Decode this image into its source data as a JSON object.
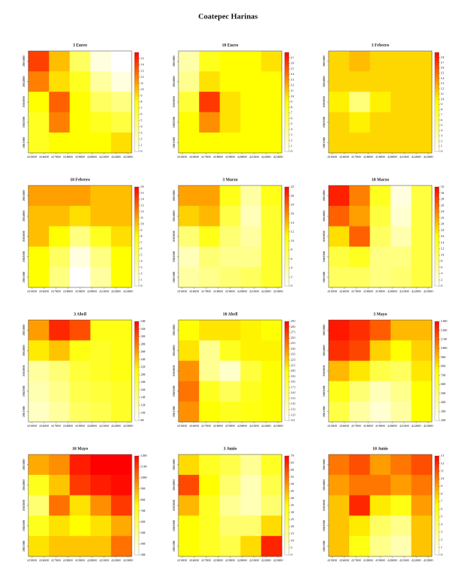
{
  "title": "Coatepec Harinas",
  "chart_data": [
    {
      "type": "heatmap",
      "title": "3 Enero",
      "xlim": [
        414700,
        423300
      ],
      "ylim": [
        2080500,
        2085500
      ],
      "xticks": [
        415000,
        416000,
        417000,
        418000,
        419000,
        420000,
        421000,
        422000,
        423000
      ],
      "yticks": [
        2081000,
        2082000,
        2083000,
        2084000,
        2085000
      ],
      "colors": [
        "#ffffff",
        "#ffff00",
        "#ff0000"
      ],
      "zlim": [
        0,
        16
      ],
      "zticks": [
        0,
        1,
        2,
        3,
        4,
        5,
        6,
        7,
        8,
        9,
        10,
        11,
        12,
        13,
        14,
        15
      ],
      "values": [
        [
          14,
          10,
          5,
          1,
          0
        ],
        [
          12,
          9,
          7,
          3,
          1
        ],
        [
          8,
          13,
          8,
          5,
          4
        ],
        [
          7,
          12,
          8,
          7,
          6
        ],
        [
          7,
          8,
          8,
          8,
          9
        ]
      ]
    },
    {
      "type": "heatmap",
      "title": "18 Enero",
      "xlim": [
        414700,
        423300
      ],
      "ylim": [
        2080500,
        2085500
      ],
      "xticks": [
        415000,
        416000,
        417000,
        418000,
        419000,
        420000,
        421000,
        422000,
        423000
      ],
      "yticks": [
        2081000,
        2082000,
        2083000,
        2084000,
        2085000
      ],
      "colors": [
        "#ffffff",
        "#ffff00",
        "#ff0000"
      ],
      "zlim": [
        0,
        18
      ],
      "zticks": [
        0,
        1,
        2,
        3,
        4,
        5,
        6,
        7,
        8,
        9,
        10,
        11,
        12,
        13,
        14,
        15,
        16,
        17
      ],
      "values": [
        [
          3,
          8,
          9,
          9,
          10
        ],
        [
          4,
          10,
          9,
          9,
          9
        ],
        [
          7,
          16,
          10,
          9,
          9
        ],
        [
          9,
          13,
          10,
          9,
          9
        ],
        [
          9,
          9,
          9,
          9,
          9
        ]
      ]
    },
    {
      "type": "heatmap",
      "title": "3 Febrero",
      "xlim": [
        414700,
        423300
      ],
      "ylim": [
        2080500,
        2085500
      ],
      "xticks": [
        415000,
        416000,
        417000,
        418000,
        419000,
        420000,
        421000,
        422000,
        423000
      ],
      "yticks": [
        2081000,
        2082000,
        2083000,
        2084000,
        2085000
      ],
      "colors": [
        "#ffffff",
        "#ffff00",
        "#ff0000"
      ],
      "zlim": [
        0,
        19
      ],
      "zticks": [
        0,
        1,
        2,
        3,
        4,
        5,
        6,
        7,
        8,
        9,
        10,
        11,
        12,
        13,
        14,
        15,
        16,
        17,
        18
      ],
      "values": [
        [
          11,
          12,
          11,
          11,
          11
        ],
        [
          11,
          11,
          11,
          11,
          11
        ],
        [
          10,
          5,
          10,
          11,
          11
        ],
        [
          11,
          10,
          11,
          11,
          11
        ],
        [
          11,
          11,
          11,
          11,
          11
        ]
      ]
    },
    {
      "type": "heatmap",
      "title": "18 Febrero",
      "xlim": [
        414700,
        423300
      ],
      "ylim": [
        2080500,
        2085500
      ],
      "xticks": [
        415000,
        416000,
        417000,
        418000,
        419000,
        420000,
        421000,
        422000,
        423000
      ],
      "yticks": [
        2081000,
        2082000,
        2083000,
        2084000,
        2085000
      ],
      "colors": [
        "#ffffff",
        "#ffff00",
        "#ff0000"
      ],
      "zlim": [
        0,
        16
      ],
      "zticks": [
        0,
        1,
        2,
        3,
        4,
        5,
        6,
        7,
        8,
        9,
        10,
        11,
        12,
        13,
        14,
        15,
        16
      ],
      "values": [
        [
          11,
          11,
          11,
          10,
          10
        ],
        [
          10,
          10,
          9,
          10,
          10
        ],
        [
          10,
          8,
          4,
          7,
          9
        ],
        [
          8,
          5,
          1,
          4,
          8
        ],
        [
          8,
          4,
          0,
          3,
          8
        ]
      ]
    },
    {
      "type": "heatmap",
      "title": "3 Marzo",
      "xlim": [
        414700,
        423300
      ],
      "ylim": [
        2080500,
        2085500
      ],
      "xticks": [
        415000,
        416000,
        417000,
        418000,
        419000,
        420000,
        421000,
        422000,
        423000
      ],
      "yticks": [
        2081000,
        2082000,
        2083000,
        2084000,
        2085000
      ],
      "colors": [
        "#ffffff",
        "#ffff00",
        "#ff0000"
      ],
      "zlim": [
        0,
        22
      ],
      "zticks": [
        0,
        2,
        4,
        6,
        8,
        10,
        12,
        14,
        16,
        18,
        20,
        22
      ],
      "values": [
        [
          15,
          15,
          10,
          4,
          10
        ],
        [
          13,
          14,
          8,
          3,
          9
        ],
        [
          6,
          10,
          6,
          4,
          9
        ],
        [
          3,
          6,
          5,
          5,
          9
        ],
        [
          4,
          5,
          6,
          7,
          9
        ]
      ]
    },
    {
      "type": "heatmap",
      "title": "18 Marzo",
      "xlim": [
        414700,
        423300
      ],
      "ylim": [
        2080500,
        2085500
      ],
      "xticks": [
        415000,
        416000,
        417000,
        418000,
        419000,
        420000,
        421000,
        422000,
        423000
      ],
      "yticks": [
        2081000,
        2082000,
        2083000,
        2084000,
        2085000
      ],
      "colors": [
        "#ffffff",
        "#ffff00",
        "#ff0000"
      ],
      "zlim": [
        0,
        32
      ],
      "zticks": [
        0,
        2,
        4,
        6,
        8,
        10,
        12,
        14,
        16,
        18,
        20,
        22,
        24,
        26,
        28,
        30,
        32
      ],
      "values": [
        [
          30,
          24,
          14,
          2,
          12
        ],
        [
          26,
          22,
          12,
          3,
          12
        ],
        [
          18,
          26,
          10,
          5,
          12
        ],
        [
          12,
          14,
          8,
          8,
          12
        ],
        [
          10,
          10,
          8,
          9,
          12
        ]
      ]
    },
    {
      "type": "heatmap",
      "title": "3 Abril",
      "xlim": [
        414700,
        423300
      ],
      "ylim": [
        2080500,
        2085500
      ],
      "xticks": [
        415000,
        416000,
        417000,
        418000,
        419000,
        420000,
        421000,
        422000,
        423000
      ],
      "yticks": [
        2081000,
        2082000,
        2083000,
        2084000,
        2085000
      ],
      "colors": [
        "#ffffff",
        "#ffff00",
        "#ff0000"
      ],
      "zlim": [
        80,
        340
      ],
      "zticks": [
        80,
        100,
        120,
        140,
        160,
        180,
        200,
        220,
        240,
        260,
        280,
        300,
        320,
        340
      ],
      "values": [
        [
          260,
          320,
          300,
          200,
          200
        ],
        [
          220,
          240,
          200,
          190,
          200
        ],
        [
          130,
          150,
          180,
          190,
          200
        ],
        [
          120,
          140,
          170,
          180,
          190
        ],
        [
          110,
          130,
          160,
          170,
          190
        ]
      ]
    },
    {
      "type": "heatmap",
      "title": "18 Abril",
      "xlim": [
        414700,
        423300
      ],
      "ylim": [
        2080500,
        2085500
      ],
      "xticks": [
        415000,
        416000,
        417000,
        418000,
        419000,
        420000,
        421000,
        422000,
        423000
      ],
      "yticks": [
        2081000,
        2082000,
        2083000,
        2084000,
        2085000
      ],
      "colors": [
        "#ffffff",
        "#ffff00",
        "#ff0000"
      ],
      "zlim": [
        111,
        291
      ],
      "zticks": [
        111,
        121,
        131,
        141,
        151,
        161,
        171,
        181,
        191,
        201,
        211,
        221,
        231,
        241,
        251,
        261,
        271,
        281,
        291
      ],
      "values": [
        [
          200,
          210,
          210,
          205,
          200
        ],
        [
          210,
          150,
          190,
          205,
          205
        ],
        [
          240,
          150,
          130,
          180,
          200
        ],
        [
          250,
          190,
          170,
          190,
          200
        ],
        [
          240,
          200,
          190,
          195,
          200
        ]
      ]
    },
    {
      "type": "heatmap",
      "title": "3 Mayo",
      "xlim": [
        414700,
        423300
      ],
      "ylim": [
        2080500,
        2085500
      ],
      "xticks": [
        415000,
        416000,
        417000,
        418000,
        419000,
        420000,
        421000,
        422000,
        423000
      ],
      "yticks": [
        2081000,
        2082000,
        2083000,
        2084000,
        2085000
      ],
      "colors": [
        "#ffffff",
        "#ffff00",
        "#ff0000"
      ],
      "zlim": [
        200,
        1300
      ],
      "zticks": [
        200,
        300,
        400,
        500,
        600,
        700,
        800,
        900,
        1000,
        1100,
        1200,
        1300
      ],
      "values": [
        [
          1250,
          1200,
          1100,
          900,
          900
        ],
        [
          1200,
          1150,
          850,
          750,
          850
        ],
        [
          900,
          800,
          600,
          550,
          800
        ],
        [
          700,
          500,
          350,
          450,
          750
        ],
        [
          600,
          400,
          300,
          400,
          750
        ]
      ]
    },
    {
      "type": "heatmap",
      "title": "18 Mayo",
      "xlim": [
        414700,
        423300
      ],
      "ylim": [
        2080500,
        2085500
      ],
      "xticks": [
        415000,
        416000,
        417000,
        418000,
        419000,
        420000,
        421000,
        422000,
        423000
      ],
      "yticks": [
        2081000,
        2082000,
        2083000,
        2084000,
        2085000
      ],
      "colors": [
        "#ffffff",
        "#ffff00",
        "#ff0000"
      ],
      "zlim": [
        300,
        1200
      ],
      "zticks": [
        300,
        400,
        500,
        600,
        700,
        800,
        900,
        1000,
        1100,
        1200
      ],
      "values": [
        [
          900,
          950,
          1150,
          1200,
          1200
        ],
        [
          700,
          850,
          1100,
          1150,
          1180
        ],
        [
          550,
          1000,
          800,
          950,
          1100
        ],
        [
          700,
          800,
          750,
          800,
          900
        ],
        [
          800,
          850,
          850,
          850,
          1000
        ]
      ]
    },
    {
      "type": "heatmap",
      "title": "3 Junio",
      "xlim": [
        414700,
        423300
      ],
      "ylim": [
        2080500,
        2085500
      ],
      "xticks": [
        415000,
        416000,
        417000,
        418000,
        419000,
        420000,
        421000,
        422000,
        423000
      ],
      "yticks": [
        2081000,
        2082000,
        2083000,
        2084000,
        2085000
      ],
      "colors": [
        "#ffffff",
        "#ffff00",
        "#ff0000"
      ],
      "zlim": [
        0,
        70
      ],
      "zticks": [
        0,
        5,
        10,
        15,
        20,
        25,
        30,
        35,
        40,
        45,
        50,
        55,
        60,
        65,
        70
      ],
      "values": [
        [
          40,
          30,
          25,
          15,
          30
        ],
        [
          60,
          35,
          20,
          10,
          25
        ],
        [
          45,
          30,
          15,
          10,
          20
        ],
        [
          35,
          30,
          20,
          20,
          40
        ],
        [
          35,
          30,
          25,
          40,
          65
        ]
      ]
    },
    {
      "type": "heatmap",
      "title": "18 Junio",
      "xlim": [
        414700,
        423300
      ],
      "ylim": [
        2080500,
        2085500
      ],
      "xticks": [
        415000,
        416000,
        417000,
        418000,
        419000,
        420000,
        421000,
        422000,
        423000
      ],
      "yticks": [
        2081000,
        2082000,
        2083000,
        2084000,
        2085000
      ],
      "colors": [
        "#ffffff",
        "#ffff00",
        "#ff0000"
      ],
      "zlim": [
        0,
        13
      ],
      "zticks": [
        0,
        1,
        2,
        3,
        4,
        5,
        6,
        7,
        8,
        9,
        10,
        11,
        12,
        13
      ],
      "values": [
        [
          10,
          11,
          9,
          10,
          11
        ],
        [
          9,
          10,
          10,
          9,
          10
        ],
        [
          8,
          12,
          7,
          6,
          9
        ],
        [
          8,
          7,
          4,
          3,
          8
        ],
        [
          8,
          6,
          3,
          2,
          8
        ]
      ]
    }
  ]
}
